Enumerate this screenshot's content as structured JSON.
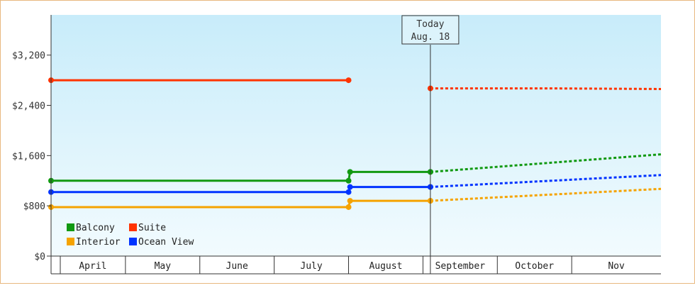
{
  "chart_data": {
    "type": "line",
    "title": "",
    "xlabel": "",
    "ylabel": "",
    "ylim": [
      0,
      3840
    ],
    "yticks": [
      {
        "value": 0,
        "label": "$0"
      },
      {
        "value": 800,
        "label": "$800"
      },
      {
        "value": 1600,
        "label": "$1,600"
      },
      {
        "value": 2400,
        "label": "$2,400"
      },
      {
        "value": 3200,
        "label": "$3,200"
      }
    ],
    "xlim": [
      -0.5,
      7.7
    ],
    "months": [
      "April",
      "May",
      "June",
      "July",
      "August",
      "September",
      "October",
      "Nov"
    ],
    "today": {
      "line1": "Today",
      "line2": "Aug. 18",
      "x": 4.6
    },
    "grid": false,
    "legend": "bottom-left",
    "series": [
      {
        "name": "Balcony",
        "color": "#119911",
        "history": [
          [
            -0.5,
            1200
          ],
          [
            3.5,
            1200
          ],
          [
            3.52,
            1340
          ],
          [
            4.6,
            1340
          ]
        ],
        "forecast": [
          [
            4.6,
            1340
          ],
          [
            7.7,
            1620
          ]
        ]
      },
      {
        "name": "Suite",
        "color": "#ff3300",
        "history": [
          [
            -0.5,
            2800
          ],
          [
            3.5,
            2800
          ]
        ],
        "forecast": [
          [
            4.6,
            2670
          ],
          [
            6.2,
            2670
          ],
          [
            7.7,
            2660
          ]
        ]
      },
      {
        "name": "Interior",
        "color": "#f5a300",
        "history": [
          [
            -0.5,
            780
          ],
          [
            3.5,
            780
          ],
          [
            3.52,
            880
          ],
          [
            4.6,
            880
          ]
        ],
        "forecast": [
          [
            4.6,
            880
          ],
          [
            7.7,
            1070
          ]
        ]
      },
      {
        "name": "Ocean View",
        "color": "#0033ff",
        "history": [
          [
            -0.5,
            1020
          ],
          [
            3.5,
            1020
          ],
          [
            3.52,
            1100
          ],
          [
            4.6,
            1100
          ]
        ],
        "forecast": [
          [
            4.6,
            1100
          ],
          [
            7.7,
            1290
          ]
        ]
      }
    ]
  }
}
